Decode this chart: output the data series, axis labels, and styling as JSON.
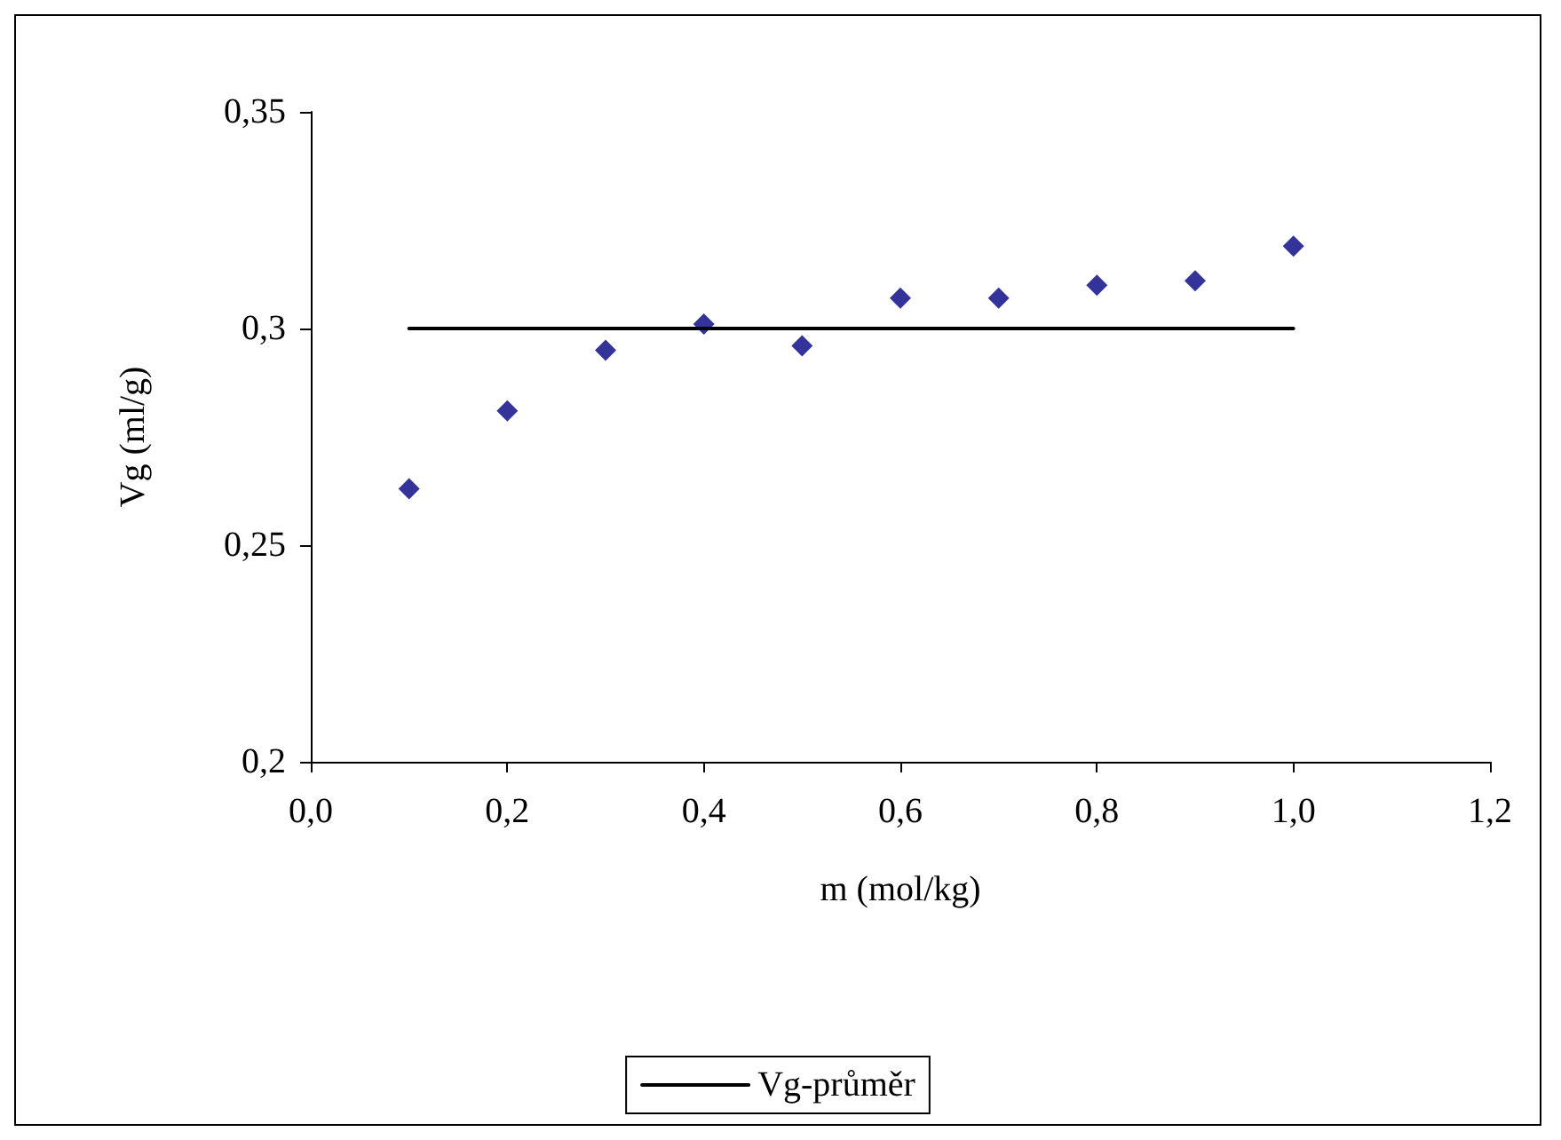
{
  "chart_data": {
    "type": "scatter",
    "xlabel": "m (mol/kg)",
    "ylabel": "Vg (ml/g)",
    "x": [
      0.1,
      0.2,
      0.3,
      0.4,
      0.5,
      0.6,
      0.7,
      0.8,
      0.9,
      1.0
    ],
    "series": [
      {
        "type": "scatter",
        "color": "#000080",
        "marker": "diamond",
        "values": [
          0.263,
          0.281,
          0.295,
          0.301,
          0.296,
          0.307,
          0.307,
          0.31,
          0.311,
          0.319
        ]
      },
      {
        "type": "line",
        "name": "Vg-průměr",
        "color": "#000000",
        "marker": "none",
        "line_style": "solid",
        "x": [
          0.1,
          1.0
        ],
        "values": [
          0.3,
          0.3
        ]
      }
    ],
    "xlim": [
      0,
      1.2
    ],
    "xticks": [
      {
        "value": 0,
        "label": "0,0"
      },
      {
        "value": 0.2,
        "label": "0,2"
      },
      {
        "value": 0.4,
        "label": "0,4"
      },
      {
        "value": 0.6,
        "label": "0,6"
      },
      {
        "value": 0.8,
        "label": "0,8"
      },
      {
        "value": 1.0,
        "label": "1,0"
      },
      {
        "value": 1.2,
        "label": "1,2"
      }
    ],
    "ylim": [
      0.2,
      0.35
    ],
    "yticks": [
      {
        "value": 0.2,
        "label": "0,2"
      },
      {
        "value": 0.25,
        "label": "0,25"
      },
      {
        "value": 0.3,
        "label": "0,3"
      },
      {
        "value": 0.35,
        "label": "0,35"
      }
    ],
    "grid": false,
    "legend": "bottom"
  }
}
